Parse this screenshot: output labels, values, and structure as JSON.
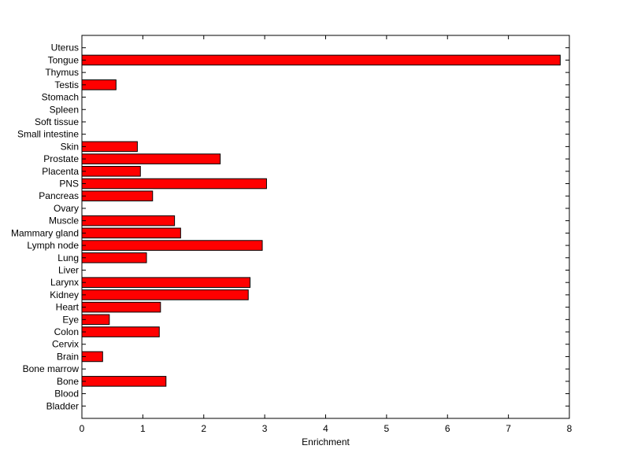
{
  "chart_data": {
    "type": "bar",
    "orientation": "horizontal",
    "title": "",
    "xlabel": "Enrichment",
    "ylabel": "",
    "xlim": [
      0,
      8
    ],
    "xticks": [
      0,
      1,
      2,
      3,
      4,
      5,
      6,
      7,
      8
    ],
    "grid": false,
    "bar_color": "#ff0000",
    "bar_edge_color": "#000000",
    "categories": [
      "Uterus",
      "Tongue",
      "Thymus",
      "Testis",
      "Stomach",
      "Spleen",
      "Soft tissue",
      "Small intestine",
      "Skin",
      "Prostate",
      "Placenta",
      "PNS",
      "Pancreas",
      "Ovary",
      "Muscle",
      "Mammary gland",
      "Lymph node",
      "Lung",
      "Liver",
      "Larynx",
      "Kidney",
      "Heart",
      "Eye",
      "Colon",
      "Cervix",
      "Brain",
      "Bone marrow",
      "Bone",
      "Blood",
      "Bladder"
    ],
    "values": [
      0,
      7.85,
      0,
      0.56,
      0,
      0,
      0,
      0,
      0.91,
      2.27,
      0.96,
      3.03,
      1.16,
      0,
      1.52,
      1.62,
      2.96,
      1.06,
      0,
      2.76,
      2.73,
      1.29,
      0.45,
      1.27,
      0,
      0.34,
      0,
      1.38,
      0,
      0
    ]
  }
}
